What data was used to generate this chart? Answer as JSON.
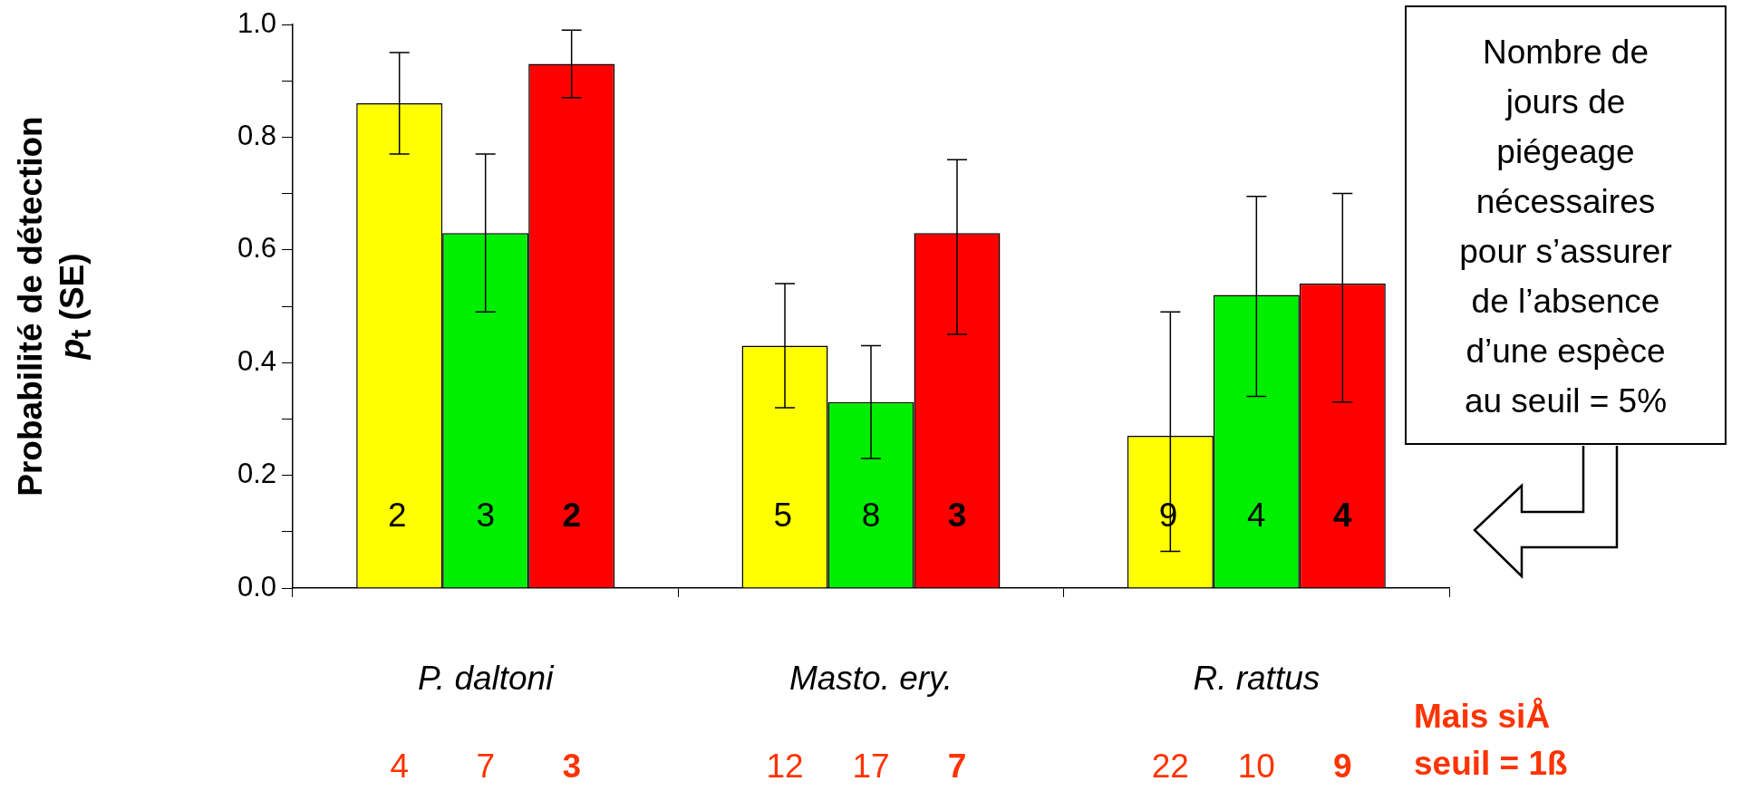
{
  "chart_data": {
    "type": "bar",
    "ylabel": "Probabilité de détection p$_{t}$ (SE)",
    "categories": [
      "P. daltoni",
      "Masto. ery.",
      "R. rattus"
    ],
    "series": [
      {
        "color": "#ffff00",
        "values": [
          0.86,
          0.43,
          0.27
        ],
        "errors": [
          [
            0.77,
            0.95
          ],
          [
            0.32,
            0.54
          ],
          [
            0.065,
            0.49
          ]
        ]
      },
      {
        "color": "#00ee00",
        "values": [
          0.63,
          0.33,
          0.52
        ],
        "errors": [
          [
            0.49,
            0.77
          ],
          [
            0.23,
            0.43
          ],
          [
            0.34,
            0.695
          ]
        ]
      },
      {
        "color": "#ff0000",
        "values": [
          0.93,
          0.63,
          0.54
        ],
        "errors": [
          [
            0.87,
            0.99
          ],
          [
            0.45,
            0.76
          ],
          [
            0.33,
            0.7
          ]
        ]
      }
    ],
    "ylim": [
      0,
      1
    ],
    "yticks": [
      {
        "value": 0,
        "label": "0.0"
      },
      {
        "value": 0.1,
        "label": null
      },
      0.2,
      {
        "value": 0.3,
        "label": null
      },
      0.4,
      {
        "value": 0.5,
        "label": null
      },
      0.6,
      {
        "value": 0.7,
        "label": null
      },
      0.8,
      {
        "value": 0.9,
        "label": null
      },
      {
        "value": 1,
        "label": "1.0"
      }
    ],
    "grid": false,
    "legend": false,
    "annotations": [
      "Nombre de jours de piégeage nécessaires pour s’assurer de l’absence d’une espèce au seuil = 5%",
      "Mais siÅ seuil = 1ß",
      "2",
      "3",
      "2",
      "5",
      "8",
      "3",
      "9",
      "4",
      "4",
      "4",
      "7",
      "3",
      "12",
      "17",
      "7",
      "22",
      "10",
      "9"
    ]
  }
}
